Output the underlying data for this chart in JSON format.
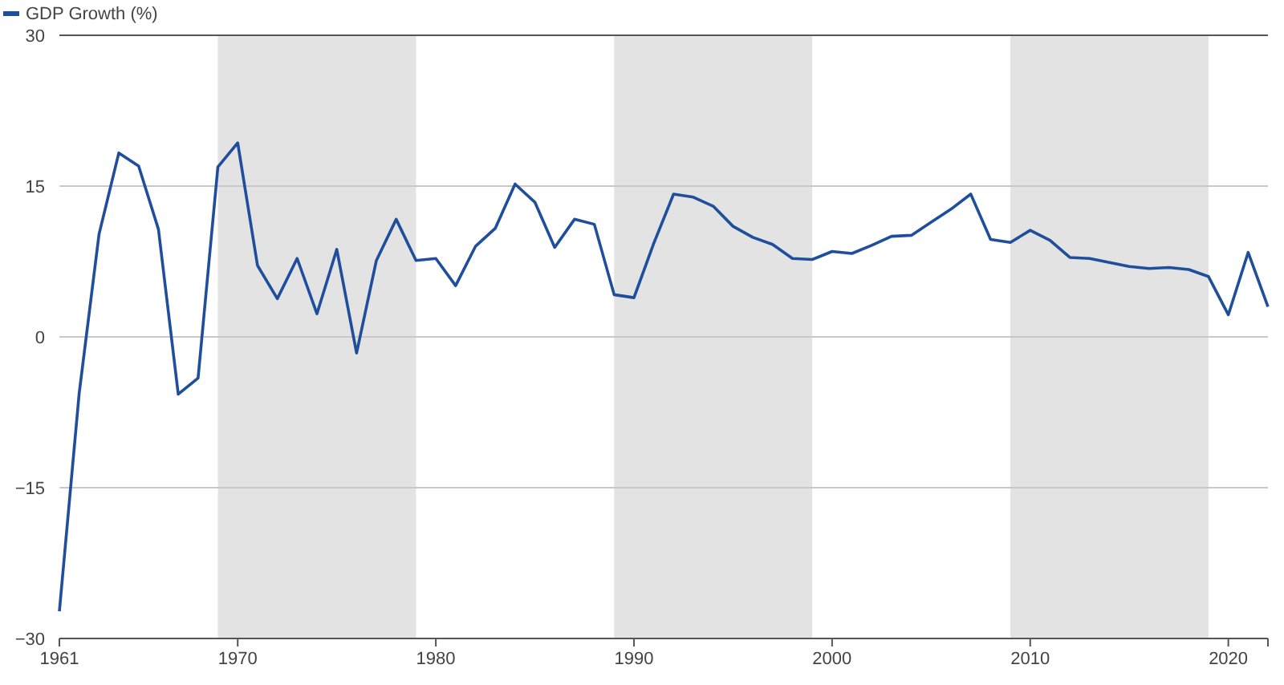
{
  "chart_data": {
    "type": "line",
    "x": [
      1961,
      1962,
      1963,
      1964,
      1965,
      1966,
      1967,
      1968,
      1969,
      1970,
      1971,
      1972,
      1973,
      1974,
      1975,
      1976,
      1977,
      1978,
      1979,
      1980,
      1981,
      1982,
      1983,
      1984,
      1985,
      1986,
      1987,
      1988,
      1989,
      1990,
      1991,
      1992,
      1993,
      1994,
      1995,
      1996,
      1997,
      1998,
      1999,
      2000,
      2001,
      2002,
      2003,
      2004,
      2005,
      2006,
      2007,
      2008,
      2009,
      2010,
      2011,
      2012,
      2013,
      2014,
      2015,
      2016,
      2017,
      2018,
      2019,
      2020,
      2021,
      2022
    ],
    "series": [
      {
        "name": "GDP Growth (%)",
        "color": "#1f4e9c",
        "values": [
          -27.3,
          -5.6,
          10.2,
          18.3,
          17.0,
          10.7,
          -5.7,
          -4.1,
          16.9,
          19.3,
          7.1,
          3.8,
          7.8,
          2.3,
          8.7,
          -1.6,
          7.6,
          11.7,
          7.6,
          7.8,
          5.1,
          9.0,
          10.8,
          15.2,
          13.4,
          8.9,
          11.7,
          11.2,
          4.2,
          3.9,
          9.3,
          14.2,
          13.9,
          13.0,
          11.0,
          9.9,
          9.2,
          7.8,
          7.7,
          8.5,
          8.3,
          9.1,
          10.0,
          10.1,
          11.4,
          12.7,
          14.2,
          9.7,
          9.4,
          10.6,
          9.6,
          7.9,
          7.8,
          7.4,
          7.0,
          6.8,
          6.9,
          6.7,
          6.0,
          2.2,
          8.4,
          3.0
        ]
      }
    ],
    "xlim": [
      1961,
      2022
    ],
    "xticks": [
      1961,
      1970,
      1980,
      1990,
      2000,
      2010,
      2020
    ],
    "ylim": [
      -30,
      30
    ],
    "yticks": [
      -30,
      -15,
      0,
      15,
      30
    ],
    "grid": "y",
    "legend": "top left",
    "bands": [
      {
        "axis": "x",
        "from": 1969,
        "to": 1979,
        "color": "#e3e3e3"
      },
      {
        "axis": "x",
        "from": 1989,
        "to": 1999,
        "color": "#e3e3e3"
      },
      {
        "axis": "x",
        "from": 2009,
        "to": 2019,
        "color": "#e3e3e3"
      }
    ]
  }
}
